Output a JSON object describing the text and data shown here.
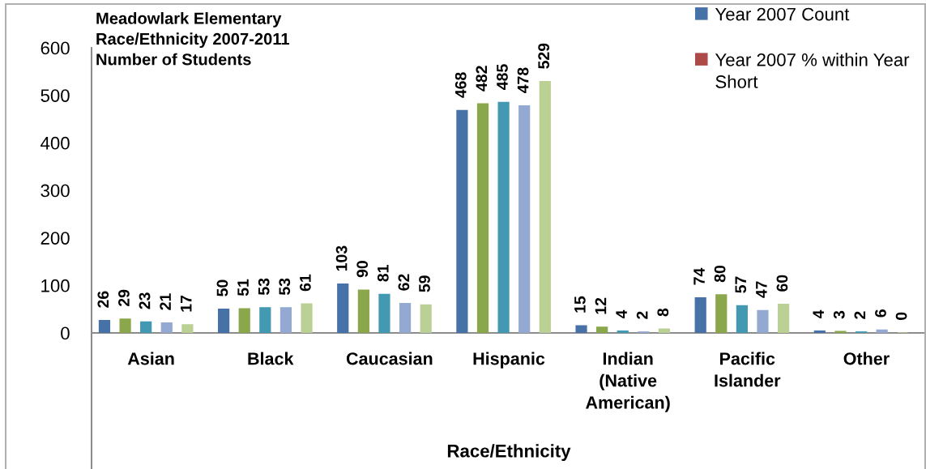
{
  "chart_data": {
    "type": "bar",
    "title": "Meadowlark Elementary Race/Ethnicity 2007-2011 Number of Students",
    "xlabel": "Race/Ethnicity",
    "categories": [
      "Asian",
      "Black",
      "Caucasian",
      "Hispanic",
      "Indian (Native American)",
      "Pacific Islander",
      "Other"
    ],
    "series": [
      {
        "name": "Year 2007 Count",
        "color": "#4672a8",
        "values": [
          26,
          50,
          103,
          468,
          15,
          74,
          4
        ]
      },
      {
        "name": "Year 2007 % within Year Short",
        "color": "#ad4a48",
        "values": [
          null,
          null,
          null,
          null,
          null,
          null,
          null
        ]
      },
      {
        "color": "#8aa74b",
        "values": [
          29,
          51,
          90,
          482,
          12,
          80,
          3
        ]
      },
      {
        "color": "#4299b1",
        "values": [
          23,
          53,
          81,
          485,
          4,
          57,
          2
        ]
      },
      {
        "color": "#94a9d2",
        "values": [
          21,
          53,
          62,
          478,
          2,
          47,
          6
        ]
      },
      {
        "color": "#bad095",
        "values": [
          17,
          61,
          59,
          529,
          8,
          60,
          0
        ]
      }
    ],
    "ylim": [
      0,
      600
    ],
    "yticks": [
      0,
      100,
      200,
      300,
      400,
      500,
      600
    ],
    "data_labels": true,
    "legend": "top right"
  }
}
